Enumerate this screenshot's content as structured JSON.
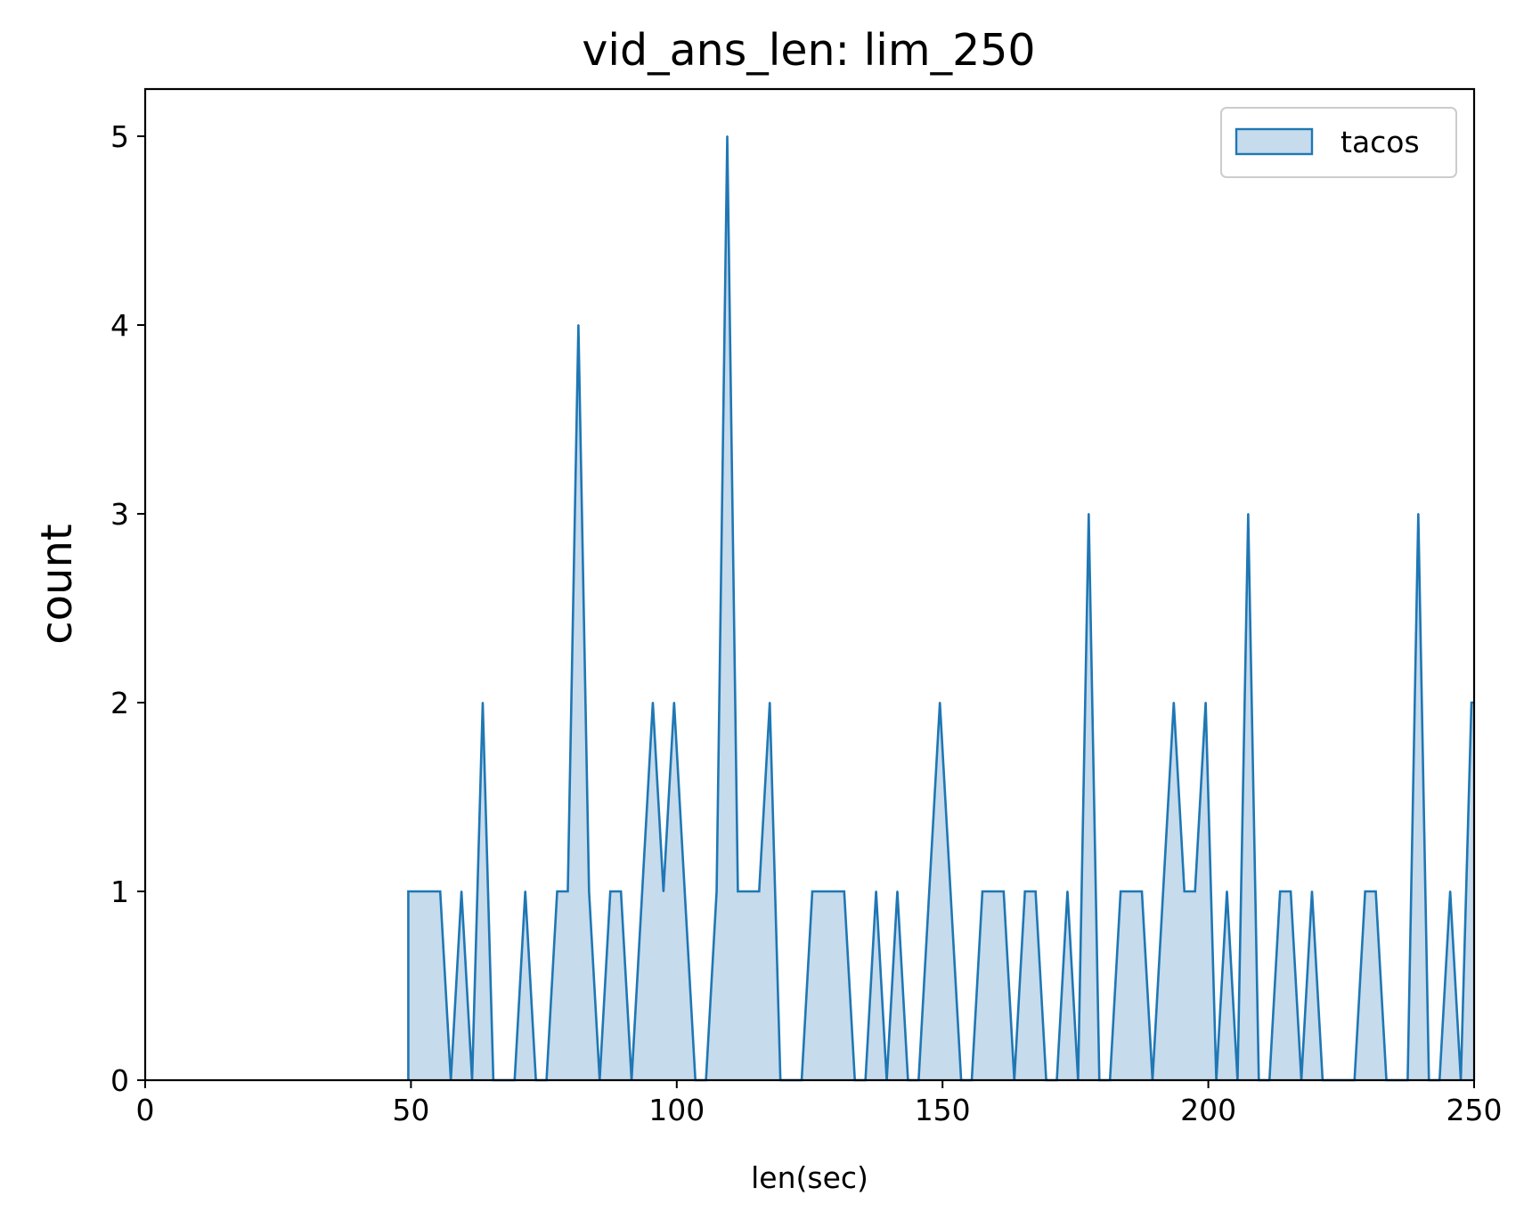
{
  "chart_data": {
    "type": "area",
    "title": "vid_ans_len: lim_250",
    "xlabel": "len(sec)",
    "ylabel": "count",
    "xlim": [
      0,
      250
    ],
    "ylim": [
      0,
      5.25
    ],
    "xticks": [
      0,
      50,
      100,
      150,
      200,
      250
    ],
    "yticks": [
      0,
      1,
      2,
      3,
      4,
      5
    ],
    "grid": false,
    "legend_position": "top-right",
    "colors": {
      "line": "#1f77b4",
      "fill": "#c6dbec",
      "axes": "#000000"
    },
    "series": [
      {
        "name": "tacos",
        "points": [
          [
            49.5,
            0
          ],
          [
            49.5,
            1
          ],
          [
            51.5,
            1
          ],
          [
            53.5,
            1
          ],
          [
            55.5,
            1
          ],
          [
            57.5,
            0
          ],
          [
            59.5,
            1
          ],
          [
            61.5,
            0
          ],
          [
            63.5,
            2
          ],
          [
            65.5,
            0
          ],
          [
            67.5,
            0
          ],
          [
            69.5,
            0
          ],
          [
            71.5,
            1
          ],
          [
            73.5,
            0
          ],
          [
            75.5,
            0
          ],
          [
            77.5,
            1
          ],
          [
            79.5,
            1
          ],
          [
            81.5,
            4
          ],
          [
            83.5,
            1
          ],
          [
            85.5,
            0
          ],
          [
            87.5,
            1
          ],
          [
            89.5,
            1
          ],
          [
            91.5,
            0
          ],
          [
            93.5,
            1
          ],
          [
            95.5,
            2
          ],
          [
            97.5,
            1
          ],
          [
            99.5,
            2
          ],
          [
            101.5,
            1
          ],
          [
            103.5,
            0
          ],
          [
            105.5,
            0
          ],
          [
            107.5,
            1
          ],
          [
            109.5,
            5
          ],
          [
            111.5,
            1
          ],
          [
            113.5,
            1
          ],
          [
            115.5,
            1
          ],
          [
            117.5,
            2
          ],
          [
            119.5,
            0
          ],
          [
            121.5,
            0
          ],
          [
            123.5,
            0
          ],
          [
            125.5,
            1
          ],
          [
            127.5,
            1
          ],
          [
            129.5,
            1
          ],
          [
            131.5,
            1
          ],
          [
            133.5,
            0
          ],
          [
            135.5,
            0
          ],
          [
            137.5,
            1
          ],
          [
            139.5,
            0
          ],
          [
            141.5,
            1
          ],
          [
            143.5,
            0
          ],
          [
            145.5,
            0
          ],
          [
            147.5,
            1
          ],
          [
            149.5,
            2
          ],
          [
            151.5,
            1
          ],
          [
            153.5,
            0
          ],
          [
            155.5,
            0
          ],
          [
            157.5,
            1
          ],
          [
            159.5,
            1
          ],
          [
            161.5,
            1
          ],
          [
            163.5,
            0
          ],
          [
            165.5,
            1
          ],
          [
            167.5,
            1
          ],
          [
            169.5,
            0
          ],
          [
            171.5,
            0
          ],
          [
            173.5,
            1
          ],
          [
            175.5,
            0
          ],
          [
            177.5,
            3
          ],
          [
            179.5,
            0
          ],
          [
            181.5,
            0
          ],
          [
            183.5,
            1
          ],
          [
            185.5,
            1
          ],
          [
            187.5,
            1
          ],
          [
            189.5,
            0
          ],
          [
            191.5,
            1
          ],
          [
            193.5,
            2
          ],
          [
            195.5,
            1
          ],
          [
            197.5,
            1
          ],
          [
            199.5,
            2
          ],
          [
            201.5,
            0
          ],
          [
            203.5,
            1
          ],
          [
            205.5,
            0
          ],
          [
            207.5,
            3
          ],
          [
            209.5,
            0
          ],
          [
            211.5,
            0
          ],
          [
            213.5,
            1
          ],
          [
            215.5,
            1
          ],
          [
            217.5,
            0
          ],
          [
            219.5,
            1
          ],
          [
            221.5,
            0
          ],
          [
            223.5,
            0
          ],
          [
            225.5,
            0
          ],
          [
            227.5,
            0
          ],
          [
            229.5,
            1
          ],
          [
            231.5,
            1
          ],
          [
            233.5,
            0
          ],
          [
            235.5,
            0
          ],
          [
            237.5,
            0
          ],
          [
            239.5,
            3
          ],
          [
            241.5,
            0
          ],
          [
            243.5,
            0
          ],
          [
            245.5,
            1
          ],
          [
            247.5,
            0
          ],
          [
            249.5,
            2
          ],
          [
            250,
            2
          ]
        ]
      }
    ]
  }
}
